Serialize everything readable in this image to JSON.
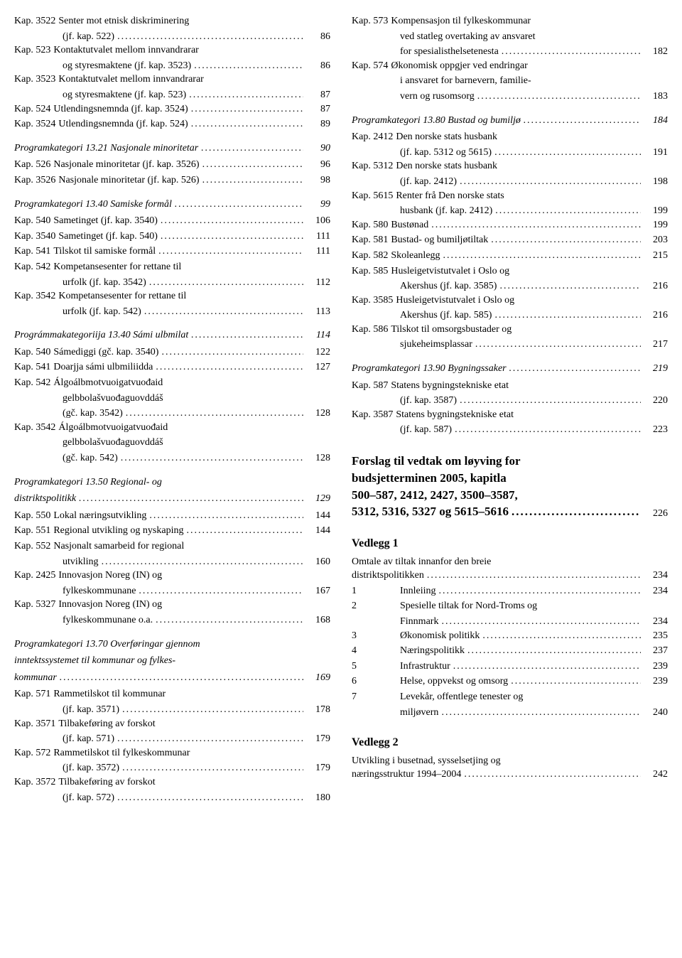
{
  "left": {
    "entries": [
      {
        "label": "Kap. 3522",
        "text": "Senter mot etnisk diskriminering",
        "cont": "(jf. kap. 522)",
        "page": "86"
      },
      {
        "label": "Kap. 523",
        "text": "Kontaktutvalet mellom innvandrarar",
        "cont": "og styresmaktene (jf. kap. 3523)",
        "page": "86"
      },
      {
        "label": "Kap. 3523",
        "text": "Kontaktutvalet mellom innvandrarar",
        "cont": "og styresmaktene (jf. kap. 523)",
        "page": "87"
      },
      {
        "label": "Kap. 524",
        "text": "Utlendingsnemnda (jf. kap. 3524)",
        "page": "87"
      },
      {
        "label": "Kap. 3524",
        "text": "Utlendingsnemnda (jf. kap. 524)",
        "page": "89"
      }
    ],
    "cat1_title": "Programkategori 13.21 Nasjonale minoritetar",
    "cat1_page": "90",
    "cat1_entries": [
      {
        "label": "Kap. 526",
        "text": "Nasjonale minoritetar (jf. kap. 3526)",
        "page": "96"
      },
      {
        "label": "Kap. 3526",
        "text": "Nasjonale minoritetar (jf. kap. 526)",
        "page": "98"
      }
    ],
    "cat2_title": "Programkategori 13.40 Samiske formål",
    "cat2_page": "99",
    "cat2_entries": [
      {
        "label": "Kap. 540",
        "text": "Sametinget (jf. kap. 3540)",
        "page": "106"
      },
      {
        "label": "Kap. 3540",
        "text": "Sametinget (jf. kap. 540)",
        "page": "111"
      },
      {
        "label": "Kap. 541",
        "text": "Tilskot til samiske formål",
        "page": "111"
      },
      {
        "label": "Kap. 542",
        "text": "Kompetansesenter for rettane til",
        "cont": "urfolk (jf. kap. 3542)",
        "page": "112"
      },
      {
        "label": "Kap. 3542",
        "text": "Kompetansesenter for rettane til",
        "cont": "urfolk (jf. kap. 542)",
        "page": "113"
      }
    ],
    "cat3_title": "Prográmmakategoriija 13.40 Sámi ulbmilat",
    "cat3_page": "114",
    "cat3_entries": [
      {
        "label": "Kap. 540",
        "text": "Sámediggi (gč. kap. 3540)",
        "page": "122"
      },
      {
        "label": "Kap. 541",
        "text": "Doarjja sámi ulbmiliidda",
        "page": "127"
      },
      {
        "label": "Kap. 542",
        "text": "Álgoálbmotvuoigatvuođaid",
        "cont": "gelbbolašvuođaguovddáš",
        "cont2": "(gč. kap. 3542)",
        "page": "128"
      },
      {
        "label": "Kap. 3542",
        "text": "Álgoálbmotvuoigatvuođaid",
        "cont": "gelbbolašvuođaguovddáš",
        "cont2": "(gč. kap. 542)",
        "page": "128"
      }
    ],
    "cat4_title1": "Programkategori 13.50 Regional- og",
    "cat4_title2": "distriktspolitikk",
    "cat4_page": "129",
    "cat4_entries": [
      {
        "label": "Kap. 550",
        "text": "Lokal næringsutvikling",
        "page": "144"
      },
      {
        "label": "Kap. 551",
        "text": "Regional utvikling og nyskaping",
        "page": "144"
      },
      {
        "label": "Kap. 552",
        "text": "Nasjonalt samarbeid for regional",
        "cont": "utvikling",
        "page": "160"
      },
      {
        "label": "Kap. 2425",
        "text": "Innovasjon Noreg (IN) og",
        "cont": "fylkeskommunane",
        "page": "167"
      },
      {
        "label": "Kap. 5327",
        "text": "Innovasjon Noreg (IN) og",
        "cont": "fylkeskommunane o.a.",
        "page": "168"
      }
    ],
    "cat5_title1": "Programkategori 13.70 Overføringar gjennom",
    "cat5_title2": "inntektssystemet til kommunar og fylkes-",
    "cat5_title3": "kommunar",
    "cat5_page": "169",
    "cat5_entries": [
      {
        "label": "Kap. 571",
        "text": "Rammetilskot til kommunar",
        "cont": "(jf. kap. 3571)",
        "page": "178"
      },
      {
        "label": "Kap. 3571",
        "text": "Tilbakeføring av forskot",
        "cont": "(jf. kap. 571)",
        "page": "179"
      },
      {
        "label": "Kap. 572",
        "text": "Rammetilskot til fylkeskommunar",
        "cont": "(jf. kap. 3572)",
        "page": "179"
      },
      {
        "label": "Kap. 3572",
        "text": "Tilbakeføring av forskot",
        "cont": "(jf. kap. 572)",
        "page": "180"
      }
    ]
  },
  "right": {
    "top_entries": [
      {
        "label": "Kap. 573",
        "text": "Kompensasjon til fylkeskommunar",
        "cont": "ved statleg overtaking av ansvaret",
        "cont2": "for spesialisthelsetenesta",
        "page": "182"
      },
      {
        "label": "Kap. 574",
        "text": "Økonomisk oppgjer ved endringar",
        "cont": "i ansvaret for barnevern, familie-",
        "cont2": "vern og rusomsorg",
        "page": "183"
      }
    ],
    "cat6_title": "Programkategori 13.80 Bustad og bumiljø",
    "cat6_page": "184",
    "cat6_entries": [
      {
        "label": "Kap. 2412",
        "text": "Den norske stats husbank",
        "cont": "(jf. kap. 5312 og 5615)",
        "page": "191"
      },
      {
        "label": "Kap. 5312",
        "text": "Den norske stats husbank",
        "cont": "(jf. kap. 2412)",
        "page": "198"
      },
      {
        "label": "Kap. 5615",
        "text": "Renter frå Den norske stats",
        "cont": "husbank (jf. kap. 2412)",
        "page": "199"
      },
      {
        "label": "Kap. 580",
        "text": "Bustønad",
        "page": "199"
      },
      {
        "label": "Kap. 581",
        "text": "Bustad- og bumiljøtiltak",
        "page": "203"
      },
      {
        "label": "Kap. 582",
        "text": "Skoleanlegg",
        "page": "215"
      },
      {
        "label": "Kap. 585",
        "text": "Husleigetvistutvalet i Oslo og",
        "cont": "Akershus (jf. kap. 3585)",
        "page": "216"
      },
      {
        "label": "Kap. 3585",
        "text": "Husleigetvistutvalet i Oslo og",
        "cont": "Akershus (jf. kap. 585)",
        "page": "216"
      },
      {
        "label": "Kap. 586",
        "text": "Tilskot til omsorgsbustader og",
        "cont": "sjukeheimsplassar",
        "page": "217"
      }
    ],
    "cat7_title": "Programkategori 13.90 Bygningssaker",
    "cat7_page": "219",
    "cat7_entries": [
      {
        "label": "Kap. 587",
        "text": "Statens bygningstekniske etat",
        "cont": "(jf. kap. 3587)",
        "page": "220"
      },
      {
        "label": "Kap. 3587",
        "text": "Statens bygningstekniske etat",
        "cont": "(jf. kap. 587)",
        "page": "223"
      }
    ],
    "forslag_l1": "Forslag til vedtak om løyving for",
    "forslag_l2": "budsjetterminen 2005, kapitla",
    "forslag_l3": "500–587, 2412, 2427, 3500–3587,",
    "forslag_l4": "5312, 5316, 5327 og 5615–5616",
    "forslag_page": "226",
    "vedlegg1_title": "Vedlegg 1",
    "vedlegg1_sub1": "Omtale av tiltak innanfor den breie",
    "vedlegg1_sub2": "distriktspolitikken",
    "vedlegg1_page": "234",
    "vedlegg1_items": [
      {
        "n": "1",
        "text": "Innleiing",
        "page": "234"
      },
      {
        "n": "2",
        "text": "Spesielle tiltak for Nord-Troms og",
        "cont": "Finnmark",
        "page": "234"
      },
      {
        "n": "3",
        "text": "Økonomisk politikk",
        "page": "235"
      },
      {
        "n": "4",
        "text": "Næringspolitikk",
        "page": "237"
      },
      {
        "n": "5",
        "text": "Infrastruktur",
        "page": "239"
      },
      {
        "n": "6",
        "text": "Helse, oppvekst og  omsorg",
        "page": "239"
      },
      {
        "n": "7",
        "text": "Levekår, offentlege tenester og",
        "cont": "miljøvern",
        "page": "240"
      }
    ],
    "vedlegg2_title": "Vedlegg 2",
    "vedlegg2_sub1": "Utvikling i busetnad, sysselsetjing og",
    "vedlegg2_sub2": "næringsstruktur 1994–2004",
    "vedlegg2_page": "242"
  }
}
